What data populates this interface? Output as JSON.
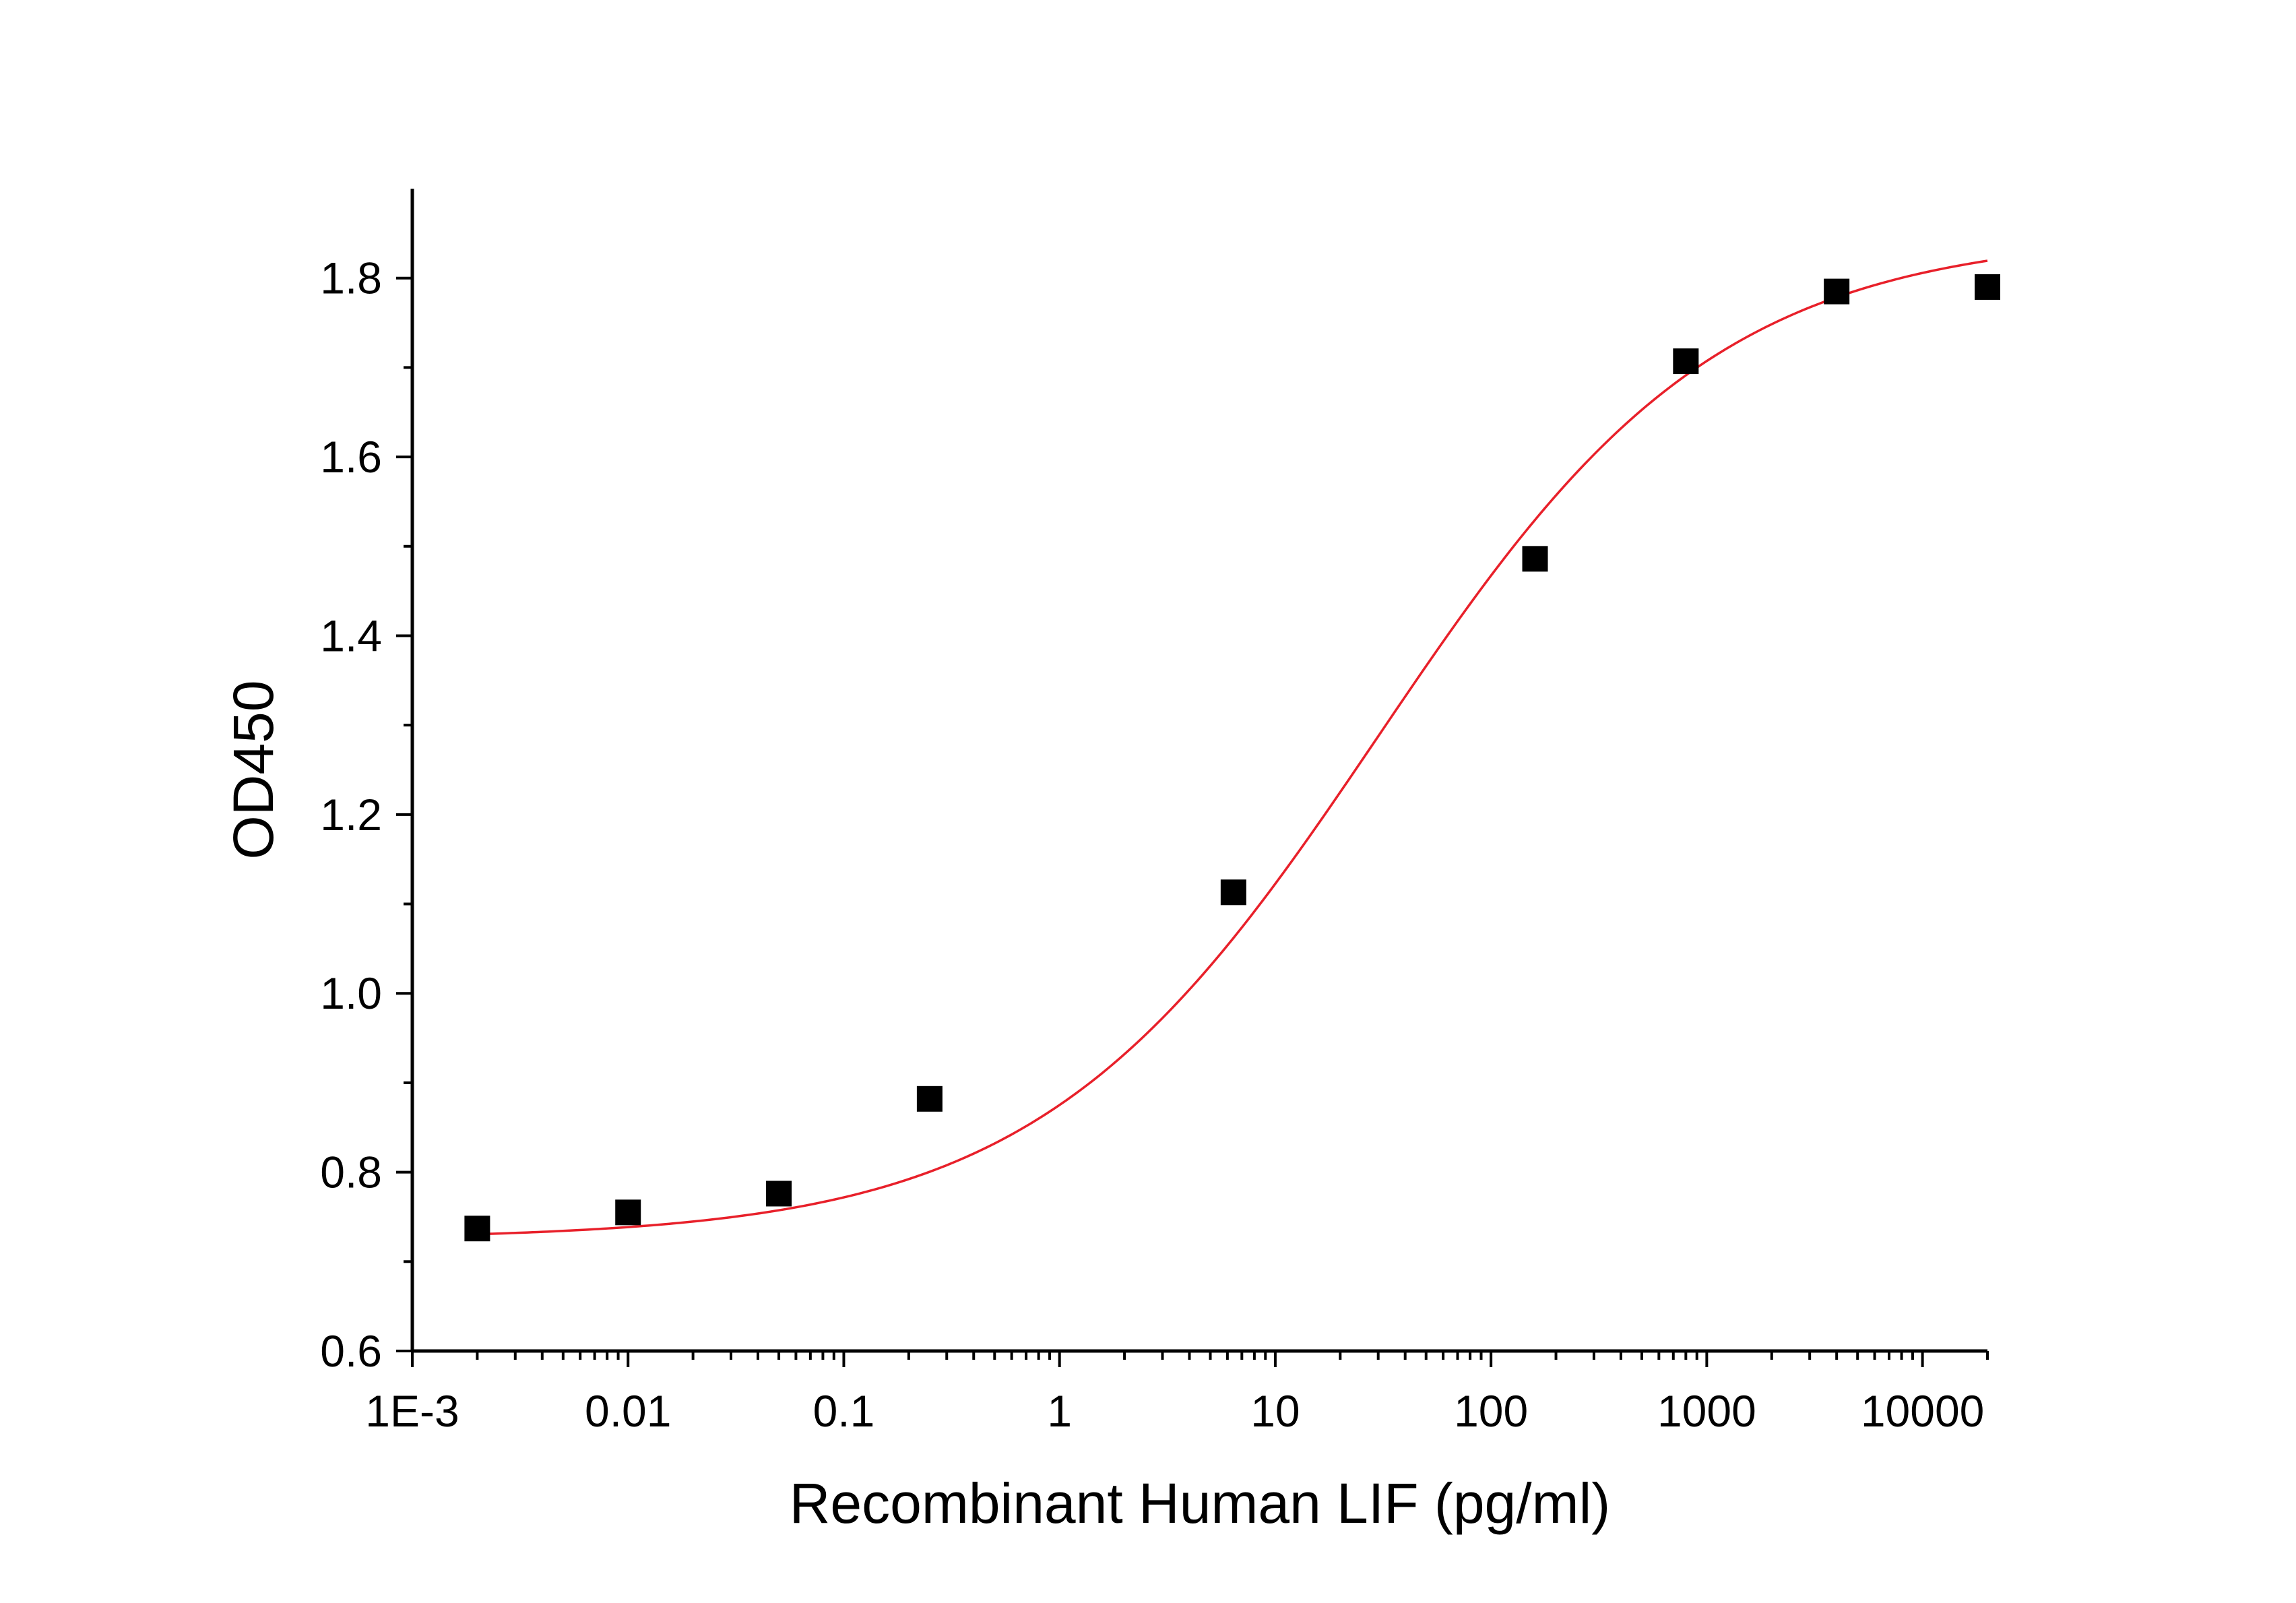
{
  "chart_data": {
    "type": "scatter",
    "title": "",
    "xlabel": "Recombinant Human LIF (pg/ml)",
    "ylabel": "OD450",
    "xscale": "log",
    "xlim": [
      0.001,
      20000
    ],
    "ylim": [
      0.6,
      1.9
    ],
    "grid": false,
    "legend": "none",
    "x_ticks": [
      {
        "value": 0.001,
        "label": "1E-3"
      },
      {
        "value": 0.01,
        "label": "0.01"
      },
      {
        "value": 0.1,
        "label": "0.1"
      },
      {
        "value": 1,
        "label": "1"
      },
      {
        "value": 10,
        "label": "10"
      },
      {
        "value": 100,
        "label": "100"
      },
      {
        "value": 1000,
        "label": "1000"
      },
      {
        "value": 10000,
        "label": "10000"
      }
    ],
    "y_ticks": [
      {
        "value": 0.6,
        "label": "0.6"
      },
      {
        "value": 0.8,
        "label": "0.8"
      },
      {
        "value": 1.0,
        "label": "1.0"
      },
      {
        "value": 1.2,
        "label": "1.2"
      },
      {
        "value": 1.4,
        "label": "1.4"
      },
      {
        "value": 1.6,
        "label": "1.6"
      },
      {
        "value": 1.8,
        "label": "1.8"
      }
    ],
    "series": [
      {
        "marker": "square",
        "color": "#000000",
        "points": [
          {
            "x": 0.002,
            "y": 0.737
          },
          {
            "x": 0.01,
            "y": 0.755
          },
          {
            "x": 0.05,
            "y": 0.776
          },
          {
            "x": 0.25,
            "y": 0.882
          },
          {
            "x": 6.4,
            "y": 1.113
          },
          {
            "x": 160,
            "y": 1.486
          },
          {
            "x": 800,
            "y": 1.707
          },
          {
            "x": 4000,
            "y": 1.785
          },
          {
            "x": 20000,
            "y": 1.79
          }
        ]
      }
    ],
    "fit": {
      "color": "#e8202a",
      "model": "4PL",
      "bottom": 0.725,
      "top": 1.85,
      "ec50": 30,
      "hill": 0.55,
      "x_range": [
        0.002,
        20000
      ]
    }
  }
}
